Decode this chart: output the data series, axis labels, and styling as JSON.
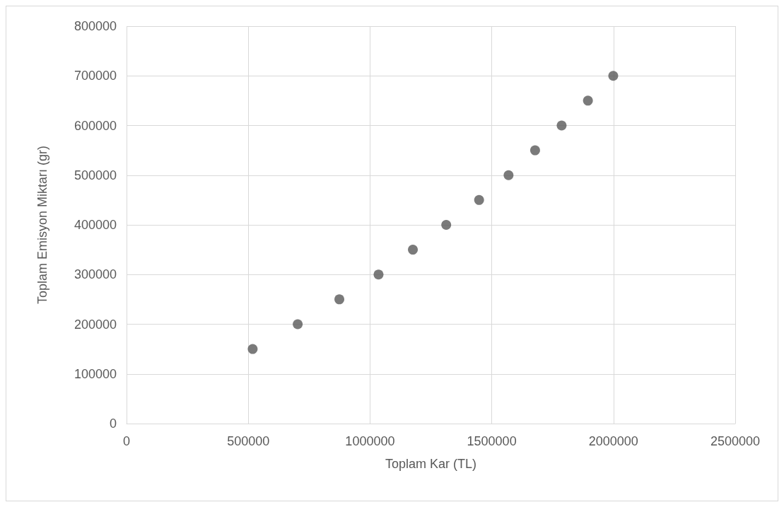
{
  "chart_data": {
    "type": "scatter",
    "xlabel": "Toplam Kar (TL)",
    "ylabel": "Toplam Emisyon Miktarı (gr)",
    "x": [
      518000,
      703000,
      874000,
      1035000,
      1176000,
      1313000,
      1448000,
      1569000,
      1678000,
      1787000,
      1895000,
      1999000
    ],
    "series": [
      {
        "color": "#595959",
        "values": [
          150000,
          200000,
          250000,
          300000,
          350000,
          400000,
          450000,
          500000,
          550000,
          600000,
          650000,
          700000
        ]
      }
    ],
    "xlim": [
      0,
      2500000
    ],
    "xticks": [
      0,
      500000,
      1000000,
      1500000,
      2000000,
      2500000
    ],
    "ylim": [
      0,
      800000
    ],
    "yticks": [
      0,
      100000,
      200000,
      300000,
      400000,
      500000,
      600000,
      700000,
      800000
    ],
    "grid": true,
    "marker": "circle"
  }
}
